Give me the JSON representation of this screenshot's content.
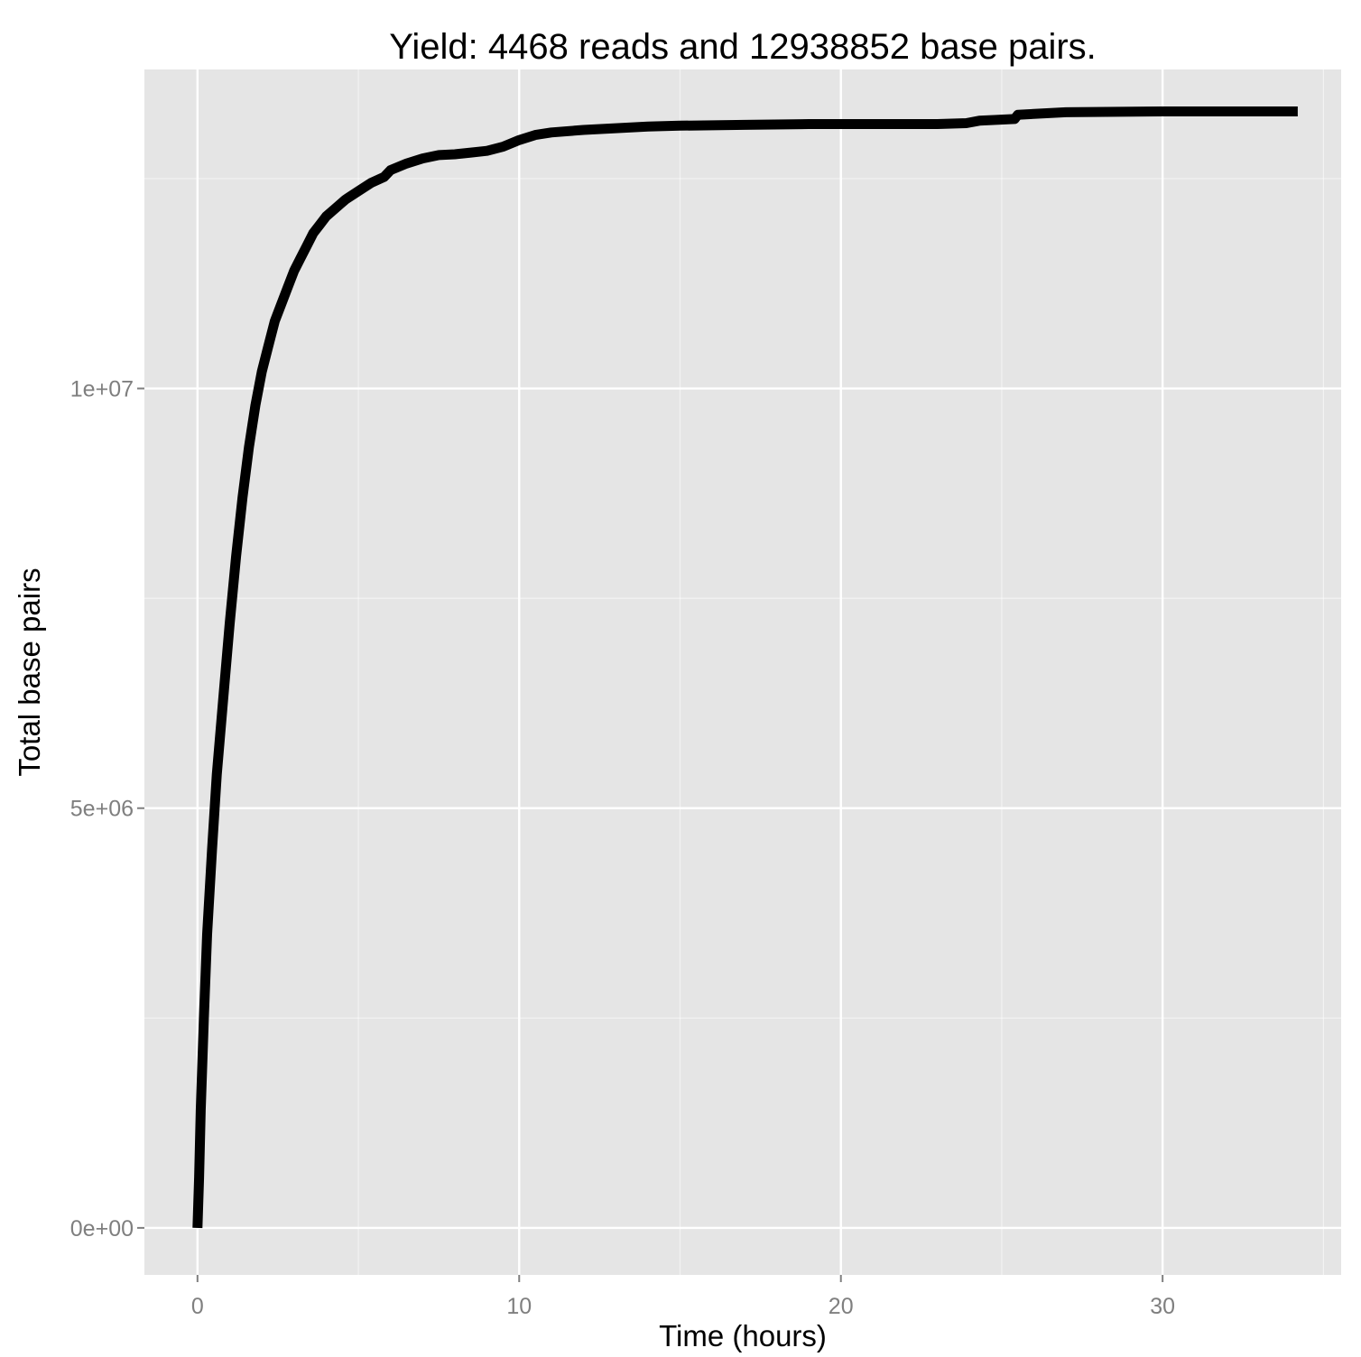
{
  "chart_data": {
    "type": "line",
    "title": "Yield: 4468 reads and 12938852 base pairs.",
    "xlabel": "Time (hours)",
    "ylabel": "Total base pairs",
    "xlim": [
      -1.65,
      35.55
    ],
    "ylim": [
      -560000,
      13800000
    ],
    "x_ticks": [
      0,
      10,
      20,
      30
    ],
    "x_tick_labels": [
      "0",
      "10",
      "20",
      "30"
    ],
    "x_minor_ticks": [
      5,
      15,
      25,
      35
    ],
    "y_ticks": [
      0,
      5000000,
      10000000
    ],
    "y_tick_labels": [
      "0e+00",
      "5e+06",
      "1e+07"
    ],
    "y_minor_ticks": [
      2500000,
      7500000,
      12500000
    ],
    "grid": true,
    "legend": "none",
    "colors": {
      "panel": "#e5e5e5",
      "grid": "#ffffff",
      "line": "#000000"
    },
    "series": [
      {
        "x": [
          0,
          0.05,
          0.1,
          0.2,
          0.3,
          0.45,
          0.6,
          0.8,
          1.0,
          1.2,
          1.4,
          1.6,
          1.8,
          2.0,
          2.2,
          2.4,
          2.6,
          2.8,
          3.0,
          3.2,
          3.4,
          3.6,
          3.8,
          4.0,
          4.3,
          4.6,
          5.0,
          5.4,
          5.8,
          6.0,
          6.5,
          7.0,
          7.5,
          8.0,
          8.5,
          9.0,
          9.5,
          10.0,
          10.5,
          11.0,
          12.0,
          13.0,
          14.0,
          15.0,
          17.0,
          19.0,
          21.0,
          23.0,
          23.9,
          24.3,
          25.4,
          25.5,
          27.0,
          30.0,
          34.2
        ],
        "y": [
          0,
          600000,
          1400000,
          2500000,
          3500000,
          4500000,
          5400000,
          6300000,
          7200000,
          8000000,
          8700000,
          9300000,
          9800000,
          10200000,
          10500000,
          10800000,
          11000000,
          11200000,
          11400000,
          11550000,
          11700000,
          11850000,
          11950000,
          12050000,
          12150000,
          12250000,
          12350000,
          12450000,
          12520000,
          12600000,
          12680000,
          12740000,
          12780000,
          12790000,
          12810000,
          12830000,
          12880000,
          12960000,
          13020000,
          13050000,
          13080000,
          13100000,
          13120000,
          13130000,
          13140000,
          13150000,
          13150000,
          13150000,
          13160000,
          13190000,
          13210000,
          13260000,
          13290000,
          13300000,
          13300000
        ]
      }
    ]
  }
}
